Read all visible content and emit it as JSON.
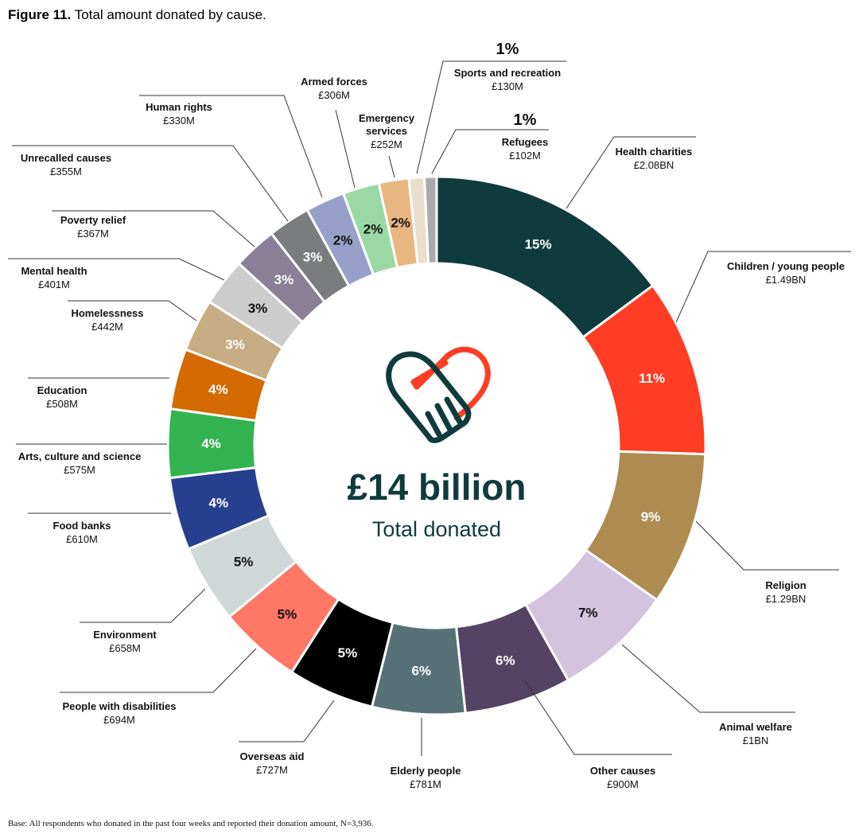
{
  "figure_label": "Figure 11.",
  "figure_caption": "Total amount donated by cause.",
  "base_note": "Base: All respondents who donated in the past four weeks and reported their donation amount, N=3,936.",
  "chart_data": {
    "type": "pie",
    "variant": "donut",
    "title": "Total amount donated by cause.",
    "center_value": "£14 billion",
    "center_label": "Total donated",
    "center_icon": "heart-handshake-icon",
    "start": "12 o'clock, clockwise",
    "unit": "£M",
    "slices": [
      {
        "label": "Health charities",
        "amount": "£2.08BN",
        "value": 2080,
        "pct": "15%",
        "color": "#0f3b3d"
      },
      {
        "label": "Children / young people",
        "amount": "£1.49BN",
        "value": 1490,
        "pct": "11%",
        "color": "#ff3d24"
      },
      {
        "label": "Religion",
        "amount": "£1.29BN",
        "value": 1290,
        "pct": "9%",
        "color": "#ae8b50"
      },
      {
        "label": "Animal welfare",
        "amount": "£1BN",
        "value": 1000,
        "pct": "7%",
        "color": "#d3c3df"
      },
      {
        "label": "Other causes",
        "amount": "£900M",
        "value": 900,
        "pct": "6%",
        "color": "#554366"
      },
      {
        "label": "Elderly people",
        "amount": "£781M",
        "value": 781,
        "pct": "6%",
        "color": "#567276"
      },
      {
        "label": "Overseas aid",
        "amount": "£727M",
        "value": 727,
        "pct": "5%",
        "color": "#000000"
      },
      {
        "label": "People with disabilities",
        "amount": "£694M",
        "value": 694,
        "pct": "5%",
        "color": "#ff7866"
      },
      {
        "label": "Environment",
        "amount": "£658M",
        "value": 658,
        "pct": "5%",
        "color": "#cfd8d7"
      },
      {
        "label": "Food banks",
        "amount": "£610M",
        "value": 610,
        "pct": "4%",
        "color": "#273f8f"
      },
      {
        "label": "Arts, culture and science",
        "amount": "£575M",
        "value": 575,
        "pct": "4%",
        "color": "#33b34f"
      },
      {
        "label": "Education",
        "amount": "£508M",
        "value": 508,
        "pct": "4%",
        "color": "#d46a00"
      },
      {
        "label": "Homelessness",
        "amount": "£442M",
        "value": 442,
        "pct": "3%",
        "color": "#c8ad84"
      },
      {
        "label": "Mental health",
        "amount": "£401M",
        "value": 401,
        "pct": "3%",
        "color": "#cccccc"
      },
      {
        "label": "Poverty relief",
        "amount": "£367M",
        "value": 367,
        "pct": "3%",
        "color": "#8a7f97"
      },
      {
        "label": "Unrecalled causes",
        "amount": "£355M",
        "value": 355,
        "pct": "3%",
        "color": "#7b7c7e"
      },
      {
        "label": "Human rights",
        "amount": "£330M",
        "value": 330,
        "pct": "2%",
        "color": "#96a0c8"
      },
      {
        "label": "Armed forces",
        "amount": "£306M",
        "value": 306,
        "pct": "2%",
        "color": "#9ad9a5"
      },
      {
        "label": "Emergency services",
        "amount": "£252M",
        "value": 252,
        "pct": "2%",
        "color": "#e8b680"
      },
      {
        "label": "Sports and recreation",
        "amount": "£130M",
        "value": 130,
        "pct": "1%",
        "color": "#e8e0cc"
      },
      {
        "label": "Refugees",
        "amount": "£102M",
        "value": 102,
        "pct": "1%",
        "color": "#aaaaae"
      }
    ]
  }
}
